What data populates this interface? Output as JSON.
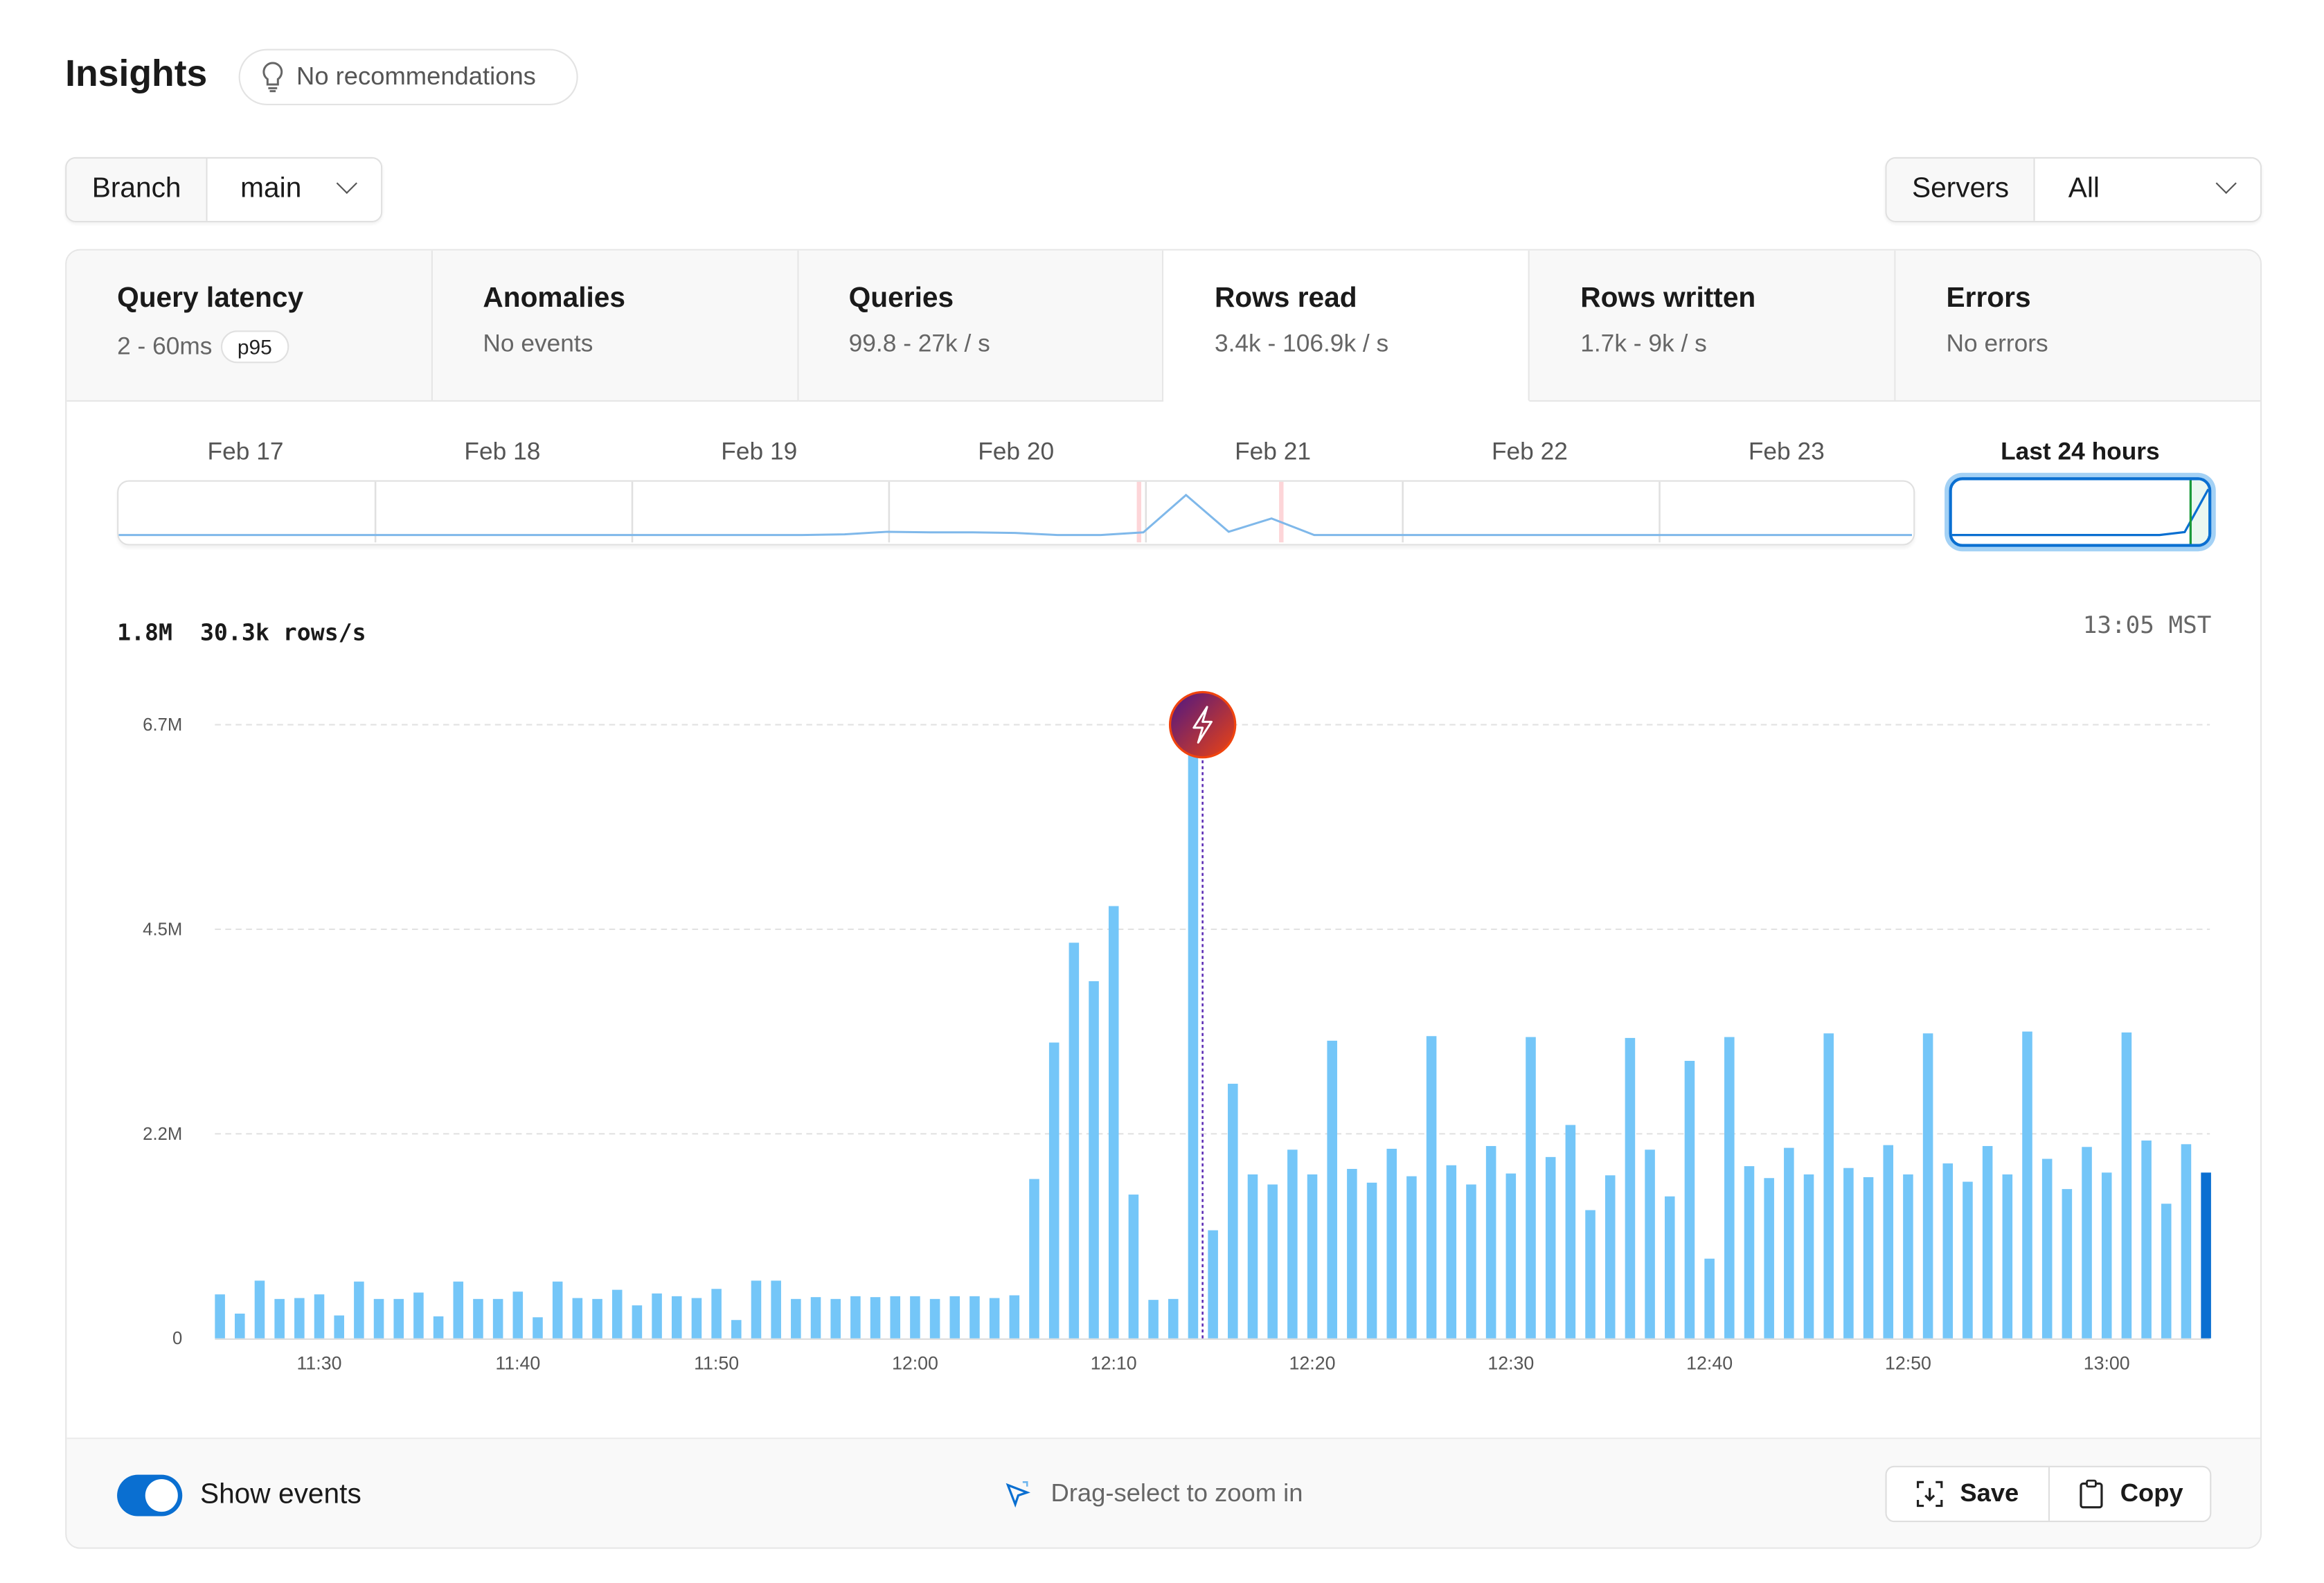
{
  "header": {
    "title": "Insights",
    "recommendations": "No recommendations",
    "recommendations_icon": "lightbulb-icon"
  },
  "filters": {
    "branch": {
      "label": "Branch",
      "value": "main"
    },
    "servers": {
      "label": "Servers",
      "value": "All"
    }
  },
  "tabs": [
    {
      "title": "Query latency",
      "subtitle": "2 - 60ms",
      "badge": "p95",
      "active": false
    },
    {
      "title": "Anomalies",
      "subtitle": "No events",
      "active": false
    },
    {
      "title": "Queries",
      "subtitle": "99.8 - 27k / s",
      "active": false
    },
    {
      "title": "Rows read",
      "subtitle": "3.4k - 106.9k / s",
      "active": true
    },
    {
      "title": "Rows written",
      "subtitle": "1.7k - 9k / s",
      "active": false
    },
    {
      "title": "Errors",
      "subtitle": "No errors",
      "active": false
    }
  ],
  "timeline": {
    "days": [
      "Feb 17",
      "Feb 18",
      "Feb 19",
      "Feb 20",
      "Feb 21",
      "Feb 22",
      "Feb 23"
    ],
    "last_24_label": "Last 24 hours",
    "overview_relative": [
      0,
      0,
      0,
      0,
      0,
      0,
      0,
      0,
      0,
      0,
      0,
      0,
      0,
      0,
      0,
      0,
      0,
      0.01,
      0.05,
      0.04,
      0.04,
      0.03,
      0,
      0,
      0.04,
      0.6,
      0.05,
      0.25,
      0,
      0,
      0,
      0,
      0,
      0,
      0,
      0,
      0,
      0,
      0,
      0,
      0,
      0,
      0
    ]
  },
  "summary": {
    "total": "1.8M",
    "rate": "30.3k rows/s",
    "time": "13:05 MST"
  },
  "colors": {
    "bar": "#74c6f8",
    "bar_current": "#0a6fd1",
    "event_start": "#4a1686",
    "event_end": "#f0440f",
    "accent": "#0a6fd1"
  },
  "chart_data": {
    "type": "bar",
    "ylim": [
      0,
      6.7
    ],
    "y_unit": "M",
    "y_ticks": [
      0,
      2.2,
      4.5,
      6.7
    ],
    "y_tick_labels": [
      "0",
      "2.2M",
      "4.5M",
      "6.7M"
    ],
    "grid": true,
    "x_tick_labels": [
      "11:30",
      "11:40",
      "11:50",
      "12:00",
      "12:10",
      "12:20",
      "12:30",
      "12:40",
      "12:50",
      "13:00"
    ],
    "categories": [
      "11:25",
      "11:26",
      "11:27",
      "11:28",
      "11:29",
      "11:30",
      "11:31",
      "11:32",
      "11:33",
      "11:34",
      "11:35",
      "11:36",
      "11:37",
      "11:38",
      "11:39",
      "11:40",
      "11:41",
      "11:42",
      "11:43",
      "11:44",
      "11:45",
      "11:46",
      "11:47",
      "11:48",
      "11:49",
      "11:50",
      "11:51",
      "11:52",
      "11:53",
      "11:54",
      "11:55",
      "11:56",
      "11:57",
      "11:58",
      "11:59",
      "12:00",
      "12:01",
      "12:02",
      "12:03",
      "12:04",
      "12:05",
      "12:06",
      "12:07",
      "12:08",
      "12:09",
      "12:10",
      "12:11",
      "12:12",
      "12:13",
      "12:14",
      "12:15",
      "12:16",
      "12:17",
      "12:18",
      "12:19",
      "12:20",
      "12:21",
      "12:22",
      "12:23",
      "12:24",
      "12:25",
      "12:26",
      "12:27",
      "12:28",
      "12:29",
      "12:30",
      "12:31",
      "12:32",
      "12:33",
      "12:34",
      "12:35",
      "12:36",
      "12:37",
      "12:38",
      "12:39",
      "12:40",
      "12:41",
      "12:42",
      "12:43",
      "12:44",
      "12:45",
      "12:46",
      "12:47",
      "12:48",
      "12:49",
      "12:50",
      "12:51",
      "12:52",
      "12:53",
      "12:54",
      "12:55",
      "12:56",
      "12:57",
      "12:58",
      "12:59",
      "13:00",
      "13:01",
      "13:02",
      "13:03",
      "13:04",
      "13:05"
    ],
    "values": [
      0.48,
      0.27,
      0.63,
      0.43,
      0.44,
      0.48,
      0.25,
      0.62,
      0.43,
      0.43,
      0.5,
      0.24,
      0.62,
      0.43,
      0.43,
      0.51,
      0.23,
      0.62,
      0.44,
      0.43,
      0.53,
      0.36,
      0.49,
      0.46,
      0.44,
      0.54,
      0.2,
      0.63,
      0.63,
      0.43,
      0.45,
      0.43,
      0.46,
      0.45,
      0.46,
      0.46,
      0.43,
      0.46,
      0.46,
      0.44,
      0.47,
      1.74,
      3.23,
      4.32,
      3.9,
      4.72,
      1.57,
      0.42,
      0.43,
      6.4,
      1.18,
      2.78,
      1.79,
      1.68,
      2.06,
      1.79,
      3.25,
      1.85,
      1.7,
      2.07,
      1.77,
      3.3,
      1.89,
      1.68,
      2.1,
      1.8,
      3.29,
      1.98,
      2.33,
      1.4,
      1.78,
      3.28,
      2.06,
      1.55,
      3.03,
      0.87,
      3.29,
      1.88,
      1.75,
      2.08,
      1.79,
      3.33,
      1.86,
      1.76,
      2.11,
      1.79,
      3.33,
      1.91,
      1.71,
      2.1,
      1.79,
      3.35,
      1.96,
      1.63,
      2.09,
      1.81,
      3.34,
      2.16,
      1.47,
      2.12,
      1.81
    ],
    "highlighted": "13:05",
    "event": {
      "after": "12:14",
      "icon": "lightning-icon"
    }
  },
  "footer": {
    "show_events_label": "Show events",
    "show_events_on": true,
    "hint": "Drag-select to zoom in",
    "save_label": "Save",
    "copy_label": "Copy"
  }
}
